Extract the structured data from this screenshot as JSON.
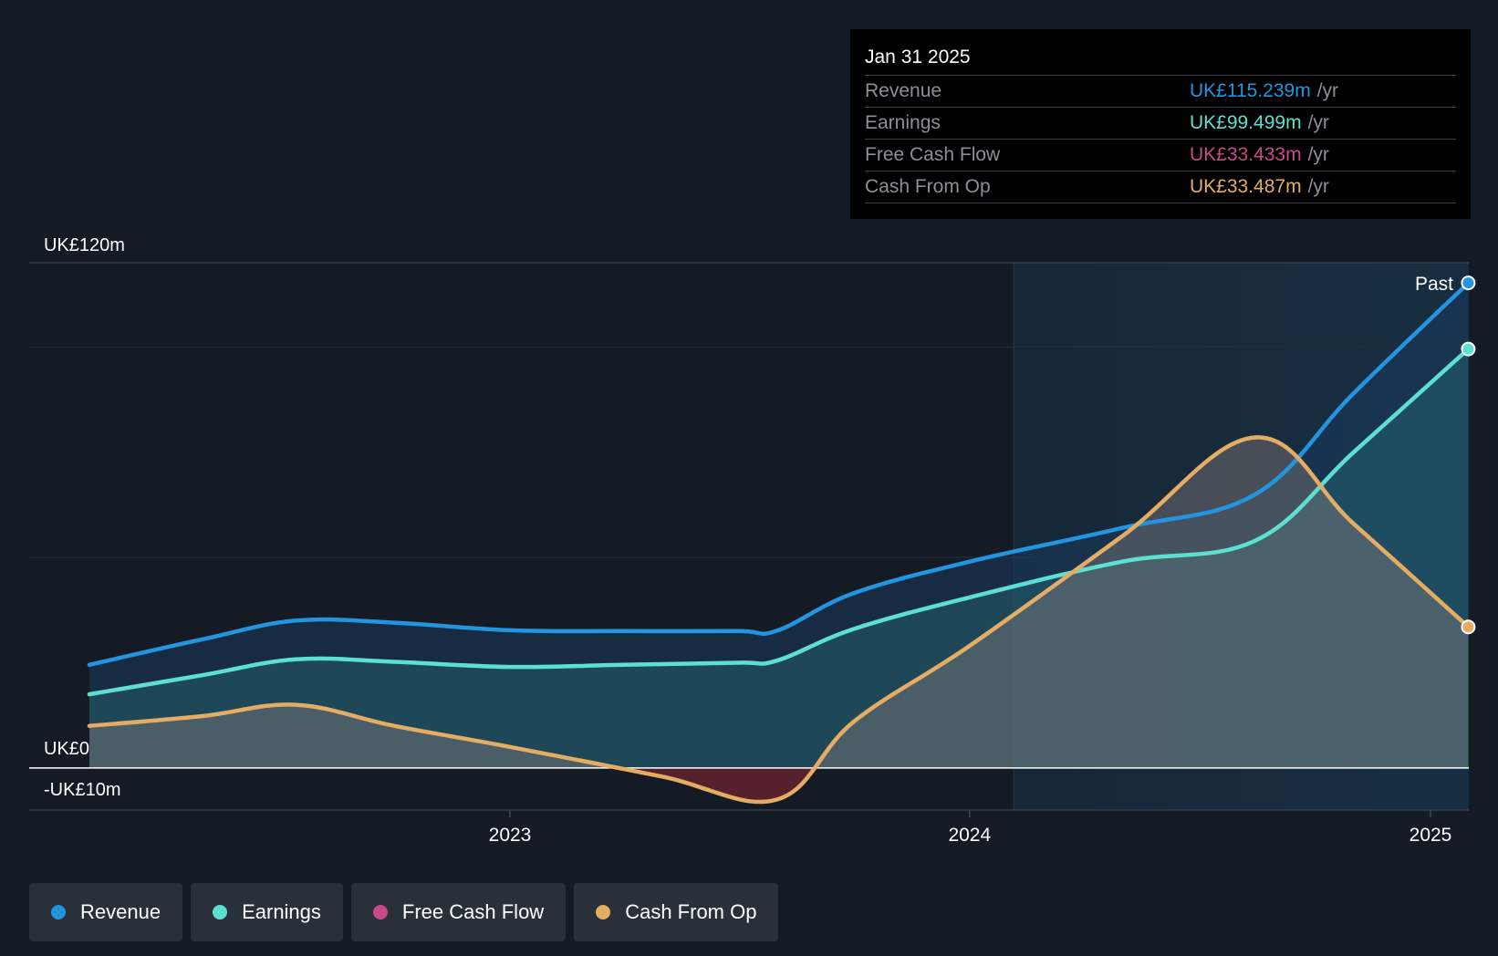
{
  "colors": {
    "revenue": "#2394df",
    "earnings": "#5ce0d2",
    "fcf": "#c84a8a",
    "cfo": "#e5ad63"
  },
  "tooltip": {
    "date": "Jan 31 2025",
    "rows": [
      {
        "label": "Revenue",
        "value": "UK£115.239m",
        "unit": "/yr",
        "color": "#2394df"
      },
      {
        "label": "Earnings",
        "value": "UK£99.499m",
        "unit": "/yr",
        "color": "#5ce0d2"
      },
      {
        "label": "Free Cash Flow",
        "value": "UK£33.433m",
        "unit": "/yr",
        "color": "#c84a8a"
      },
      {
        "label": "Cash From Op",
        "value": "UK£33.487m",
        "unit": "/yr",
        "color": "#e5ad63"
      }
    ]
  },
  "legend": [
    {
      "label": "Revenue",
      "color": "#2394df"
    },
    {
      "label": "Earnings",
      "color": "#5ce0d2"
    },
    {
      "label": "Free Cash Flow",
      "color": "#c84a8a"
    },
    {
      "label": "Cash From Op",
      "color": "#e5ad63"
    }
  ],
  "chart_data": {
    "type": "area",
    "y_tick_labels": [
      {
        "value": 120,
        "label": "UK£120m"
      },
      {
        "value": 0,
        "label": "UK£0"
      },
      {
        "value": -10,
        "label": "-UK£10m"
      }
    ],
    "ylim": [
      -10,
      120
    ],
    "gridlines": [
      120,
      100,
      50,
      0,
      -10
    ],
    "x_ticks": [
      {
        "x": "2023-01-01",
        "label": "2023"
      },
      {
        "x": "2024-01-01",
        "label": "2024"
      },
      {
        "x": "2025-01-01",
        "label": "2025"
      }
    ],
    "xlim": [
      "2022-01-01",
      "2025-02-10"
    ],
    "past_region_start": "2024-02-05",
    "past_label": "Past",
    "series": [
      {
        "name": "Revenue",
        "key": "revenue",
        "points": [
          [
            "2022-02-01",
            24.5
          ],
          [
            "2022-05-01",
            30.5
          ],
          [
            "2022-07-15",
            35.0
          ],
          [
            "2022-10-01",
            34.5
          ],
          [
            "2023-01-01",
            32.7
          ],
          [
            "2023-04-01",
            32.5
          ],
          [
            "2023-07-01",
            32.5
          ],
          [
            "2023-08-01",
            32.6
          ],
          [
            "2023-10-01",
            41.5
          ],
          [
            "2024-01-01",
            49.0
          ],
          [
            "2024-05-01",
            57.0
          ],
          [
            "2024-08-15",
            65.0
          ],
          [
            "2024-11-01",
            89.0
          ],
          [
            "2025-01-31",
            115.2
          ]
        ]
      },
      {
        "name": "Earnings",
        "key": "earnings",
        "points": [
          [
            "2022-02-01",
            17.5
          ],
          [
            "2022-05-01",
            22.0
          ],
          [
            "2022-07-15",
            25.8
          ],
          [
            "2022-10-01",
            25.2
          ],
          [
            "2023-01-01",
            24.0
          ],
          [
            "2023-04-01",
            24.5
          ],
          [
            "2023-07-01",
            25.0
          ],
          [
            "2023-08-01",
            25.5
          ],
          [
            "2023-10-01",
            33.0
          ],
          [
            "2024-01-01",
            40.5
          ],
          [
            "2024-05-01",
            49.0
          ],
          [
            "2024-08-15",
            54.0
          ],
          [
            "2024-11-01",
            75.0
          ],
          [
            "2025-01-31",
            99.5
          ]
        ]
      },
      {
        "name": "Free Cash Flow",
        "key": "fcf",
        "points": [
          [
            "2022-02-01",
            10.0
          ],
          [
            "2022-05-01",
            12.3
          ],
          [
            "2022-07-15",
            15.0
          ],
          [
            "2022-10-01",
            10.0
          ],
          [
            "2023-01-01",
            5.0
          ],
          [
            "2023-05-01",
            -2.0
          ],
          [
            "2023-08-01",
            -7.5
          ],
          [
            "2023-10-01",
            11.0
          ],
          [
            "2024-01-01",
            29.0
          ],
          [
            "2024-05-01",
            55.0
          ],
          [
            "2024-08-15",
            78.5
          ],
          [
            "2024-11-01",
            58.0
          ],
          [
            "2025-01-31",
            33.4
          ]
        ]
      },
      {
        "name": "Cash From Op",
        "key": "cfo",
        "points": [
          [
            "2022-02-01",
            10.0
          ],
          [
            "2022-05-01",
            12.3
          ],
          [
            "2022-07-15",
            15.0
          ],
          [
            "2022-10-01",
            10.0
          ],
          [
            "2023-01-01",
            5.0
          ],
          [
            "2023-05-01",
            -2.0
          ],
          [
            "2023-08-01",
            -7.5
          ],
          [
            "2023-10-01",
            11.0
          ],
          [
            "2024-01-01",
            29.0
          ],
          [
            "2024-05-01",
            55.0
          ],
          [
            "2024-08-15",
            78.5
          ],
          [
            "2024-11-01",
            58.0
          ],
          [
            "2025-01-31",
            33.5
          ]
        ]
      }
    ]
  }
}
